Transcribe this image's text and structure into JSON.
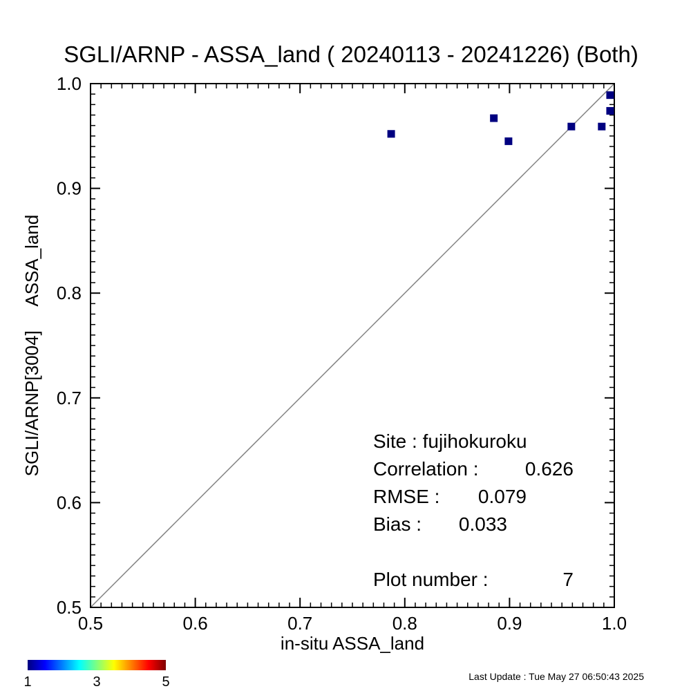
{
  "chart_data": {
    "type": "scatter",
    "title": "SGLI/ARNP - ASSA_land ( 20240113 - 20241226) (Both)",
    "xlabel": "in-situ ASSA_land",
    "ylabel": "SGLI/ARNP[3004]     ASSA_land",
    "xlim": [
      0.5,
      1.0
    ],
    "ylim": [
      0.5,
      1.0
    ],
    "x_ticks": [
      "0.5",
      "0.6",
      "0.7",
      "0.8",
      "0.9",
      "1.0"
    ],
    "y_ticks": [
      "0.5",
      "0.6",
      "0.7",
      "0.8",
      "0.9",
      "1.0"
    ],
    "one_to_one_line": true,
    "grid": false,
    "marker_color": "#000080",
    "line_color": "#808080",
    "points": [
      {
        "x": 0.787,
        "y": 0.952
      },
      {
        "x": 0.885,
        "y": 0.967
      },
      {
        "x": 0.899,
        "y": 0.945
      },
      {
        "x": 0.959,
        "y": 0.959
      },
      {
        "x": 0.988,
        "y": 0.959
      },
      {
        "x": 0.996,
        "y": 0.989
      },
      {
        "x": 0.996,
        "y": 0.974
      }
    ],
    "stats": {
      "site_label": "Site : fujihokuroku",
      "correlation_label": "Correlation :",
      "correlation_value": "0.626",
      "rmse_label": "RMSE :",
      "rmse_value": "0.079",
      "bias_label": "Bias :",
      "bias_value": "0.033",
      "plot_number_label": "Plot number :",
      "plot_number_value": "7"
    },
    "colorbar": {
      "labels": [
        "1",
        "3",
        "5"
      ],
      "colors": [
        "#00007f",
        "#0000ff",
        "#007fff",
        "#00ffff",
        "#7fff7f",
        "#ffff00",
        "#ff7f00",
        "#ff0000",
        "#7f0000"
      ]
    }
  },
  "footer": {
    "last_update": "Last Update : Tue May 27 06:50:43 2025"
  }
}
